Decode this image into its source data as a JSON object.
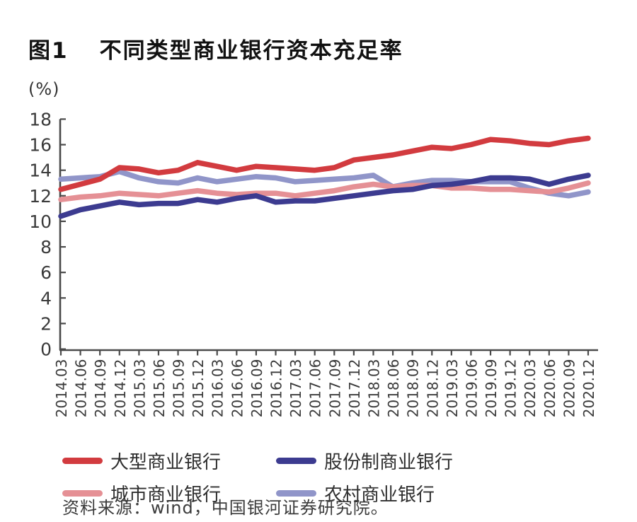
{
  "figure": {
    "tag": "图1",
    "title": "不同类型商业银行资本充足率",
    "unit_label": "(%)",
    "source": "资料来源：wind，中国银河证券研究院。"
  },
  "chart_data": {
    "type": "line",
    "title": "不同类型商业银行资本充足率",
    "ylabel": "(%)",
    "ylim": [
      0,
      18
    ],
    "ytick_step": 2,
    "grid": false,
    "legend_position": "bottom",
    "axis_color": "#4a4a4a",
    "categories": [
      "2014.03",
      "2014.06",
      "2014.09",
      "2014.12",
      "2015.03",
      "2015.06",
      "2015.09",
      "2015.12",
      "2016.03",
      "2016.06",
      "2016.09",
      "2016.12",
      "2017.03",
      "2017.06",
      "2017.09",
      "2017.12",
      "2018.03",
      "2018.06",
      "2018.09",
      "2018.12",
      "2019.03",
      "2019.06",
      "2019.09",
      "2019.12",
      "2020.03",
      "2020.06",
      "2020.09",
      "2020.12"
    ],
    "series": [
      {
        "name": "大型商业银行",
        "color": "#d23b3f",
        "values": [
          12.5,
          12.9,
          13.3,
          14.2,
          14.1,
          13.8,
          14.0,
          14.6,
          14.3,
          14.0,
          14.3,
          14.2,
          14.1,
          14.0,
          14.2,
          14.8,
          15.0,
          15.2,
          15.5,
          15.8,
          15.7,
          16.0,
          16.4,
          16.3,
          16.1,
          16.0,
          16.3,
          16.5
        ]
      },
      {
        "name": "股份制商业银行",
        "color": "#3c3b90",
        "values": [
          10.4,
          10.9,
          11.2,
          11.5,
          11.3,
          11.4,
          11.4,
          11.7,
          11.5,
          11.8,
          12.0,
          11.5,
          11.6,
          11.6,
          11.8,
          12.0,
          12.2,
          12.4,
          12.5,
          12.8,
          12.9,
          13.1,
          13.4,
          13.4,
          13.3,
          12.9,
          13.3,
          13.6
        ]
      },
      {
        "name": "城市商业银行",
        "color": "#e59095",
        "values": [
          11.7,
          11.9,
          12.0,
          12.2,
          12.1,
          12.0,
          12.2,
          12.4,
          12.2,
          12.1,
          12.2,
          12.2,
          12.0,
          12.2,
          12.4,
          12.7,
          12.9,
          12.7,
          12.8,
          12.8,
          12.6,
          12.6,
          12.5,
          12.5,
          12.4,
          12.3,
          12.6,
          13.0
        ]
      },
      {
        "name": "农村商业银行",
        "color": "#9095c9",
        "values": [
          13.3,
          13.4,
          13.5,
          13.9,
          13.4,
          13.1,
          13.0,
          13.4,
          13.1,
          13.3,
          13.5,
          13.4,
          13.1,
          13.2,
          13.3,
          13.4,
          13.6,
          12.7,
          13.0,
          13.2,
          13.2,
          13.1,
          13.1,
          13.1,
          12.6,
          12.2,
          12.0,
          12.3
        ]
      }
    ]
  }
}
